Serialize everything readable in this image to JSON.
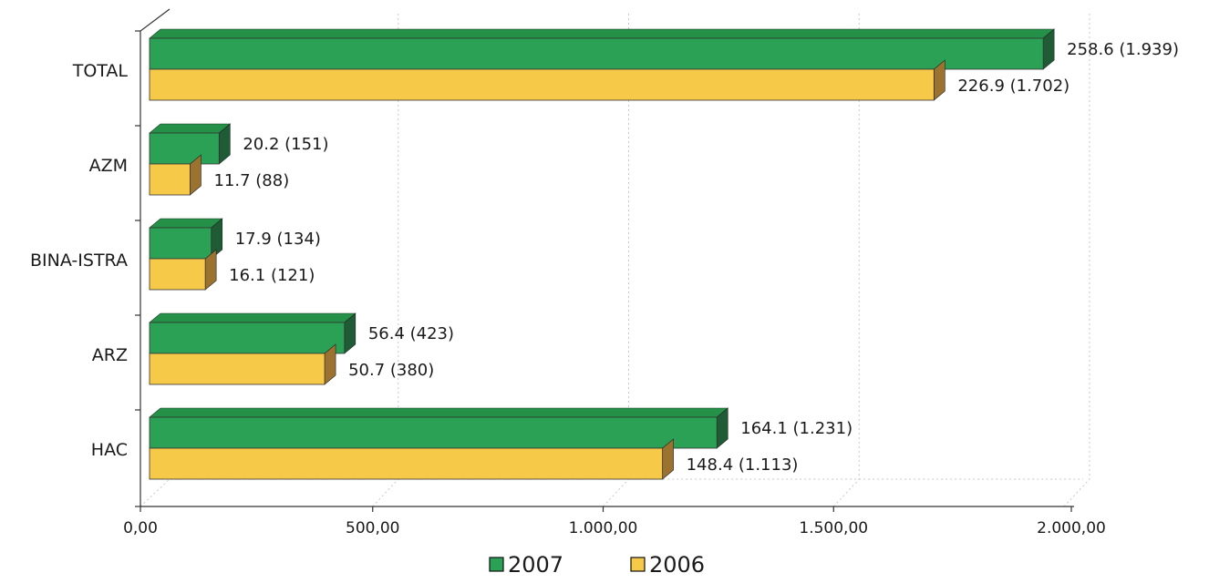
{
  "colors": {
    "series_2007": {
      "face": "#2aa155",
      "top": "#249048",
      "side": "#1f5c35"
    },
    "series_2006": {
      "face": "#f7c948",
      "top": "#e8b83d",
      "side": "#9b7230"
    },
    "axis": "#333333",
    "grid": "#c8c8c8"
  },
  "chart_data": {
    "type": "bar",
    "orientation": "horizontal",
    "style": "3d",
    "categories": [
      "TOTAL",
      "AZM",
      "BINA-ISTRA",
      "ARZ",
      "HAC"
    ],
    "series": [
      {
        "name": "2007",
        "values": [
          1939,
          151,
          134,
          423,
          1231
        ],
        "labels": [
          "258.6 (1.939)",
          "20.2 (151)",
          "17.9 (134)",
          "56.4 (423)",
          "164.1 (1.231)"
        ]
      },
      {
        "name": "2006",
        "values": [
          1702,
          88,
          121,
          380,
          1113
        ],
        "labels": [
          "226.9 (1.702)",
          "11.7 (88)",
          "16.1 (121)",
          "50.7 (380)",
          "148.4 (1.113)"
        ]
      }
    ],
    "xlim": [
      0,
      2000
    ],
    "x_ticks": [
      0,
      500,
      1000,
      1500,
      2000
    ],
    "x_tick_labels": [
      "0,00",
      "500,00",
      "1.000,00",
      "1.500,00",
      "2.000,00"
    ],
    "grid": true,
    "legend_position": "bottom-center"
  }
}
